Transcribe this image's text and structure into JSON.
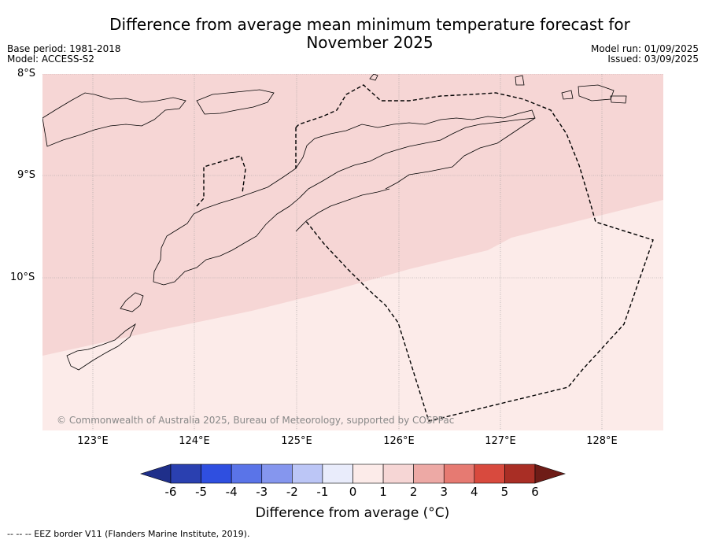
{
  "title_line1": "Difference from average mean minimum temperature forecast for",
  "title_line2": "November 2025",
  "meta": {
    "base_period": "Base period: 1981-2018",
    "model": "Model: ACCESS-S2",
    "model_run": "Model run: 01/09/2025",
    "issued": "Issued: 03/09/2025"
  },
  "map": {
    "lat_labels": [
      "8°S",
      "9°S",
      "10°S"
    ],
    "lon_labels": [
      "123°E",
      "124°E",
      "125°E",
      "126°E",
      "127°E",
      "128°E"
    ],
    "colors": {
      "band_1_2": "#f6d6d5",
      "band_0_1": "#fcebe9",
      "land_outline": "#000000"
    },
    "copyright": "© Commonwealth of Australia 2025, Bureau of Meteorology, supported by COSPPac"
  },
  "colorbar": {
    "ticks": [
      "-6",
      "-5",
      "-4",
      "-3",
      "-2",
      "-1",
      "0",
      "1",
      "2",
      "3",
      "4",
      "5",
      "6"
    ],
    "colors": [
      "#1f2f8a",
      "#2a40b0",
      "#2f4fe0",
      "#5a74e8",
      "#8596ee",
      "#bcc6f6",
      "#e9ecfb",
      "#fcebe9",
      "#f6d6d5",
      "#eda9a5",
      "#e67a72",
      "#d84a3e",
      "#a92e25",
      "#6e1c17"
    ],
    "title": "Difference from average (°C)"
  },
  "footnote": "--  --  -- EEZ border V11 (Flanders Marine Institute, 2019)."
}
